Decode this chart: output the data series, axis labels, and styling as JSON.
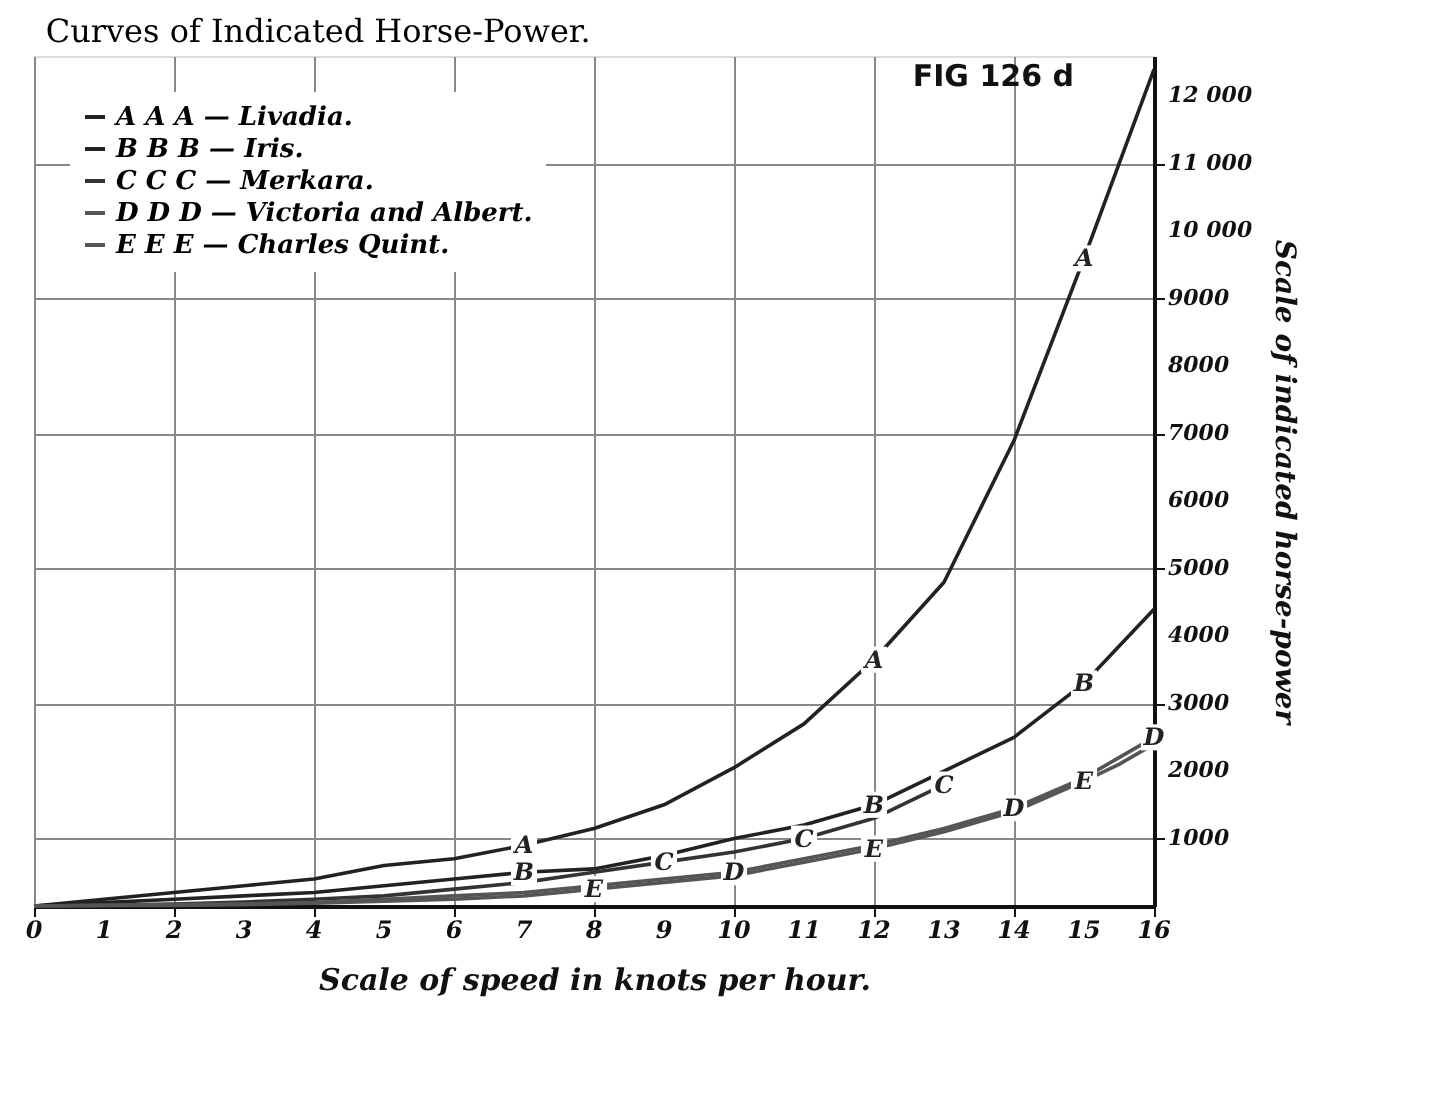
{
  "chart_data": {
    "type": "line",
    "title": "Curves of Indicated Horse-Power.",
    "xlabel": "Scale of speed in knots per hour.",
    "ylabel": "Scale of indicated horse-power",
    "x": [
      0,
      1,
      2,
      3,
      4,
      5,
      6,
      7,
      8,
      9,
      10,
      11,
      12,
      13,
      14,
      15,
      15.5,
      16
    ],
    "series": [
      {
        "name": "A A A — Livadia.",
        "color": "#222222",
        "values": [
          0,
          100,
          200,
          300,
          400,
          600,
          700,
          900,
          1150,
          1500,
          2050,
          2700,
          3650,
          4800,
          6900,
          9600,
          11000,
          12400
        ]
      },
      {
        "name": "B B B — Iris.",
        "color": "#222222",
        "values": [
          0,
          50,
          100,
          150,
          200,
          300,
          400,
          500,
          550,
          750,
          1000,
          1200,
          1500,
          2000,
          2500,
          3300,
          3850,
          4400
        ]
      },
      {
        "name": "C C C — Merkara.",
        "color": "#333333",
        "values": [
          0,
          10,
          30,
          60,
          100,
          150,
          250,
          350,
          500,
          650,
          800,
          1000,
          1300,
          1800,
          null,
          null,
          null,
          null
        ]
      },
      {
        "name": "D D D — Victoria and Albert.",
        "color": "#555555",
        "values": [
          0,
          10,
          20,
          30,
          50,
          100,
          150,
          200,
          300,
          400,
          500,
          700,
          900,
          1150,
          1450,
          1900,
          2200,
          2500
        ]
      },
      {
        "name": "E E E — Charles Quint.",
        "color": "#555555",
        "values": [
          0,
          10,
          10,
          20,
          40,
          70,
          100,
          150,
          250,
          350,
          450,
          650,
          850,
          1100,
          1400,
          1850,
          2100,
          2400
        ]
      }
    ],
    "xlim": [
      0,
      16
    ],
    "ylim": [
      0,
      12600
    ],
    "xticks": [
      0,
      1,
      2,
      3,
      4,
      5,
      6,
      7,
      8,
      9,
      10,
      11,
      12,
      13,
      14,
      15,
      16
    ],
    "yticks": [
      1000,
      2000,
      3000,
      4000,
      5000,
      6000,
      7000,
      8000,
      9000,
      {
        "value": 10000,
        "label": "10 000"
      },
      {
        "value": 11000,
        "label": "11 000"
      },
      {
        "value": 12000,
        "label": "12 000"
      }
    ],
    "grid": true,
    "legend": "top left",
    "marker": "none",
    "line_style": "solid",
    "annotations": [
      "FIG 126 d",
      {
        "text": "A",
        "x": 7,
        "y": 900
      },
      {
        "text": "A",
        "x": 12,
        "y": 3650
      },
      {
        "text": "A",
        "x": 15,
        "y": 9600
      },
      {
        "text": "B",
        "x": 7,
        "y": 500
      },
      {
        "text": "B",
        "x": 12,
        "y": 1500
      },
      {
        "text": "B",
        "x": 15,
        "y": 3300
      },
      {
        "text": "C",
        "x": 9,
        "y": 650
      },
      {
        "text": "C",
        "x": 11,
        "y": 1000
      },
      {
        "text": "C",
        "x": 13,
        "y": 1800
      },
      {
        "text": "D",
        "x": 10,
        "y": 500
      },
      {
        "text": "D",
        "x": 14,
        "y": 1450
      },
      {
        "text": "D",
        "x": 16,
        "y": 2500
      },
      {
        "text": "E",
        "x": 8,
        "y": 250
      },
      {
        "text": "E",
        "x": 12,
        "y": 850
      },
      {
        "text": "E",
        "x": 15,
        "y": 1850
      }
    ]
  }
}
